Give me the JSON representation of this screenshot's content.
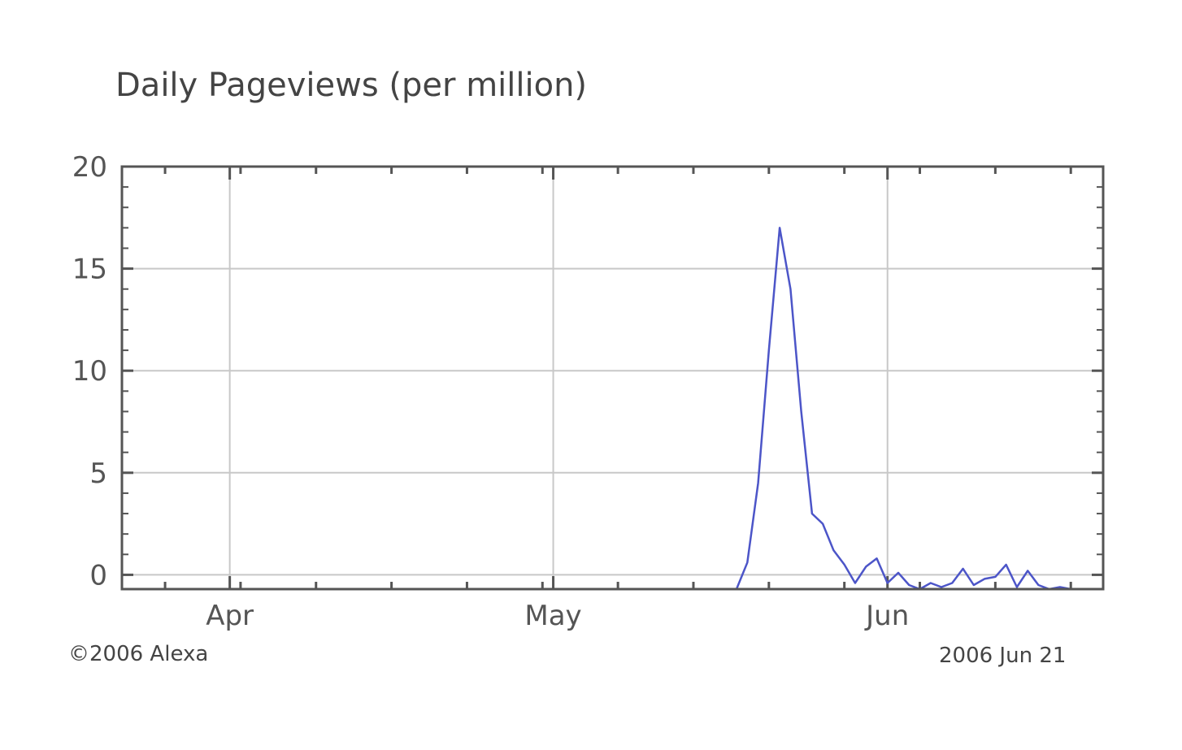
{
  "chart_data": {
    "type": "line",
    "title": "Daily Pageviews (per million)",
    "xlabel": "",
    "ylabel": "",
    "ylim": [
      -0.7,
      20
    ],
    "yticks": [
      0,
      5,
      10,
      15,
      20
    ],
    "xlim": [
      "2006-03-22",
      "2006-06-21"
    ],
    "xticks": [
      {
        "date": "2006-04-01",
        "label": "Apr"
      },
      {
        "date": "2006-05-01",
        "label": "May"
      },
      {
        "date": "2006-06-01",
        "label": "Jun"
      }
    ],
    "grid": true,
    "line_color": "#4c55c8",
    "series": [
      {
        "points": [
          {
            "x": "2006-03-22",
            "y": -0.7
          },
          {
            "x": "2006-05-18",
            "y": -0.7
          },
          {
            "x": "2006-05-19",
            "y": 0.6
          },
          {
            "x": "2006-05-20",
            "y": 4.5
          },
          {
            "x": "2006-05-21",
            "y": 11.0
          },
          {
            "x": "2006-05-22",
            "y": 17.0
          },
          {
            "x": "2006-05-23",
            "y": 14.0
          },
          {
            "x": "2006-05-24",
            "y": 8.0
          },
          {
            "x": "2006-05-25",
            "y": 3.0
          },
          {
            "x": "2006-05-26",
            "y": 2.5
          },
          {
            "x": "2006-05-27",
            "y": 1.2
          },
          {
            "x": "2006-05-28",
            "y": 0.5
          },
          {
            "x": "2006-05-29",
            "y": -0.4
          },
          {
            "x": "2006-05-30",
            "y": 0.4
          },
          {
            "x": "2006-05-31",
            "y": 0.8
          },
          {
            "x": "2006-06-01",
            "y": -0.4
          },
          {
            "x": "2006-06-02",
            "y": 0.1
          },
          {
            "x": "2006-06-03",
            "y": -0.5
          },
          {
            "x": "2006-06-04",
            "y": -0.7
          },
          {
            "x": "2006-06-05",
            "y": -0.4
          },
          {
            "x": "2006-06-06",
            "y": -0.6
          },
          {
            "x": "2006-06-07",
            "y": -0.4
          },
          {
            "x": "2006-06-08",
            "y": 0.3
          },
          {
            "x": "2006-06-09",
            "y": -0.5
          },
          {
            "x": "2006-06-10",
            "y": -0.2
          },
          {
            "x": "2006-06-11",
            "y": -0.1
          },
          {
            "x": "2006-06-12",
            "y": 0.5
          },
          {
            "x": "2006-06-13",
            "y": -0.6
          },
          {
            "x": "2006-06-14",
            "y": 0.2
          },
          {
            "x": "2006-06-15",
            "y": -0.5
          },
          {
            "x": "2006-06-16",
            "y": -0.7
          },
          {
            "x": "2006-06-17",
            "y": -0.6
          },
          {
            "x": "2006-06-18",
            "y": -0.7
          },
          {
            "x": "2006-06-21",
            "y": -0.7
          }
        ]
      }
    ]
  },
  "footer": {
    "copyright": "©2006 Alexa",
    "date": "2006 Jun 21"
  }
}
